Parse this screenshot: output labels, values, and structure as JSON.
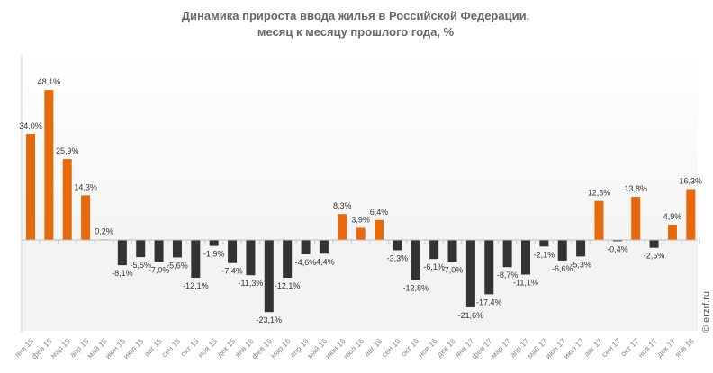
{
  "chart_data": {
    "type": "bar",
    "title": [
      "Динамика прироста ввода жилья в Российской Федерации,",
      "месяц к месяцу прошлого года, %"
    ],
    "xlabel": "",
    "ylabel": "",
    "ylim": [
      -29,
      60
    ],
    "grid": false,
    "legend": "none",
    "colors": {
      "positive": "#E8690B",
      "negative": "#333333"
    },
    "categories": [
      "янв 15",
      "фев 15",
      "мар 15",
      "апр 15",
      "май 15",
      "июн 15",
      "июл 15",
      "авг 15",
      "сен 15",
      "окт 15",
      "ноя 15",
      "дек 15",
      "янв 16",
      "фев 16",
      "мар 16",
      "апр 16",
      "май 16",
      "июн 16",
      "июл 16",
      "авг 16",
      "сен 16",
      "окт 16",
      "ноя 16",
      "дек 16",
      "янв 17",
      "фев 17",
      "мар 17",
      "апр 17",
      "май 17",
      "июн 17",
      "июл 17",
      "авг 17",
      "сен 17",
      "окт 17",
      "ноя 17",
      "дек 17",
      "янв 18"
    ],
    "values": [
      34.0,
      48.1,
      25.9,
      14.3,
      0.2,
      -8.1,
      -5.5,
      -7.0,
      -5.6,
      -12.1,
      -1.9,
      -7.4,
      -11.3,
      -23.1,
      -12.1,
      -4.6,
      -4.4,
      8.3,
      3.9,
      6.4,
      -3.3,
      -12.8,
      -6.1,
      -7.0,
      -21.6,
      -17.4,
      -8.7,
      -11.1,
      -2.1,
      -6.6,
      -5.3,
      12.5,
      -0.4,
      13.8,
      -2.5,
      4.9,
      16.3
    ],
    "labels": [
      "34,0%",
      "48,1%",
      "25,9%",
      "14,3%",
      "0,2%",
      "-8,1%",
      "-5,5%",
      "-7,0%",
      "-5,6%",
      "-12,1%",
      "-1,9%",
      "-7,4%",
      "-11,3%",
      "-23,1%",
      "-12,1%",
      "-4,6%",
      "-4,4%",
      "8,3%",
      "3,9%",
      "6,4%",
      "-3,3%",
      "-12,8%",
      "-6,1%",
      "-7,0%",
      "-21,6%",
      "-17,4%",
      "-8,7%",
      "-11,1%",
      "-2,1%",
      "-6,6%",
      "-5,3%",
      "12,5%",
      "-0,4%",
      "13,8%",
      "-2,5%",
      "4,9%",
      "16,3%"
    ]
  },
  "watermark": "© erzrf.ru"
}
